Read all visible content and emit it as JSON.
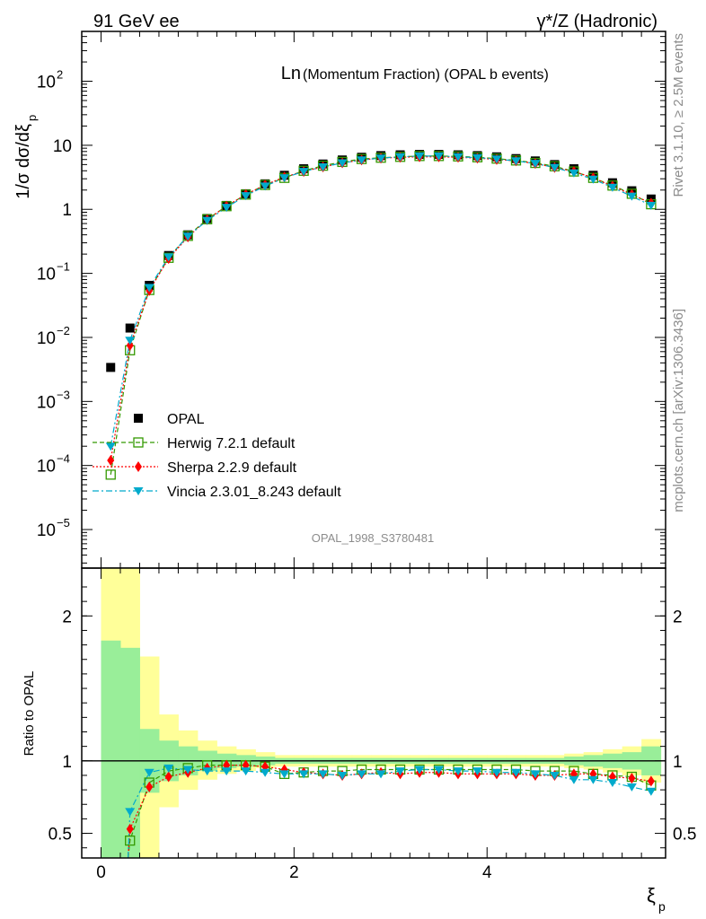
{
  "header": {
    "left": "91 GeV ee",
    "right": "γ*/Z (Hadronic)"
  },
  "side_text": {
    "version": "Rivet 3.1.10, ≥ 2.5M events",
    "url": "mcplots.cern.ch [arXiv:1306.3436]"
  },
  "chart_data": [
    {
      "type": "scatter",
      "title_main": "Ln",
      "title_rest": "(Momentum Fraction) (OPAL b events)",
      "watermark": "OPAL_1998_S3780481",
      "ylabel": "1/σ dσ/dξ",
      "ylabel_sub": "p",
      "yscale": "log",
      "ylim": [
        2.5e-06,
        600
      ],
      "xlim": [
        -0.2,
        5.85
      ],
      "y_ticks": [
        {
          "v": 1e-05,
          "base": "10",
          "exp": "−5"
        },
        {
          "v": 0.0001,
          "base": "10",
          "exp": "−4"
        },
        {
          "v": 0.001,
          "base": "10",
          "exp": "−3"
        },
        {
          "v": 0.01,
          "base": "10",
          "exp": "−2"
        },
        {
          "v": 0.1,
          "base": "10",
          "exp": "−1"
        },
        {
          "v": 1,
          "base": "1",
          "exp": ""
        },
        {
          "v": 10,
          "base": "10",
          "exp": ""
        },
        {
          "v": 100,
          "base": "10",
          "exp": "2"
        }
      ],
      "legend_position": "lower-left",
      "x": [
        0.1,
        0.3,
        0.5,
        0.7,
        0.9,
        1.1,
        1.3,
        1.5,
        1.7,
        1.9,
        2.1,
        2.3,
        2.5,
        2.7,
        2.9,
        3.1,
        3.3,
        3.5,
        3.7,
        3.9,
        4.1,
        4.3,
        4.5,
        4.7,
        4.9,
        5.1,
        5.3,
        5.5,
        5.7
      ],
      "series": [
        {
          "name": "OPAL",
          "color": "#000000",
          "marker": "filled-square",
          "values": [
            0.0034,
            0.014,
            0.065,
            0.19,
            0.4,
            0.72,
            1.15,
            1.75,
            2.5,
            3.4,
            4.3,
            5.1,
            5.9,
            6.5,
            6.9,
            7.1,
            7.2,
            7.2,
            7.1,
            6.9,
            6.6,
            6.2,
            5.7,
            5.0,
            4.3,
            3.4,
            2.6,
            1.95,
            1.45
          ]
        },
        {
          "name": "Herwig 7.2.1 default",
          "color": "#339900",
          "marker": "open-square",
          "line": "dashed",
          "values": [
            7.2e-05,
            0.0063,
            0.055,
            0.175,
            0.385,
            0.7,
            1.12,
            1.7,
            2.4,
            3.1,
            4.0,
            4.8,
            5.5,
            6.1,
            6.4,
            6.6,
            6.8,
            6.8,
            6.7,
            6.5,
            6.2,
            5.8,
            5.3,
            4.7,
            3.9,
            3.1,
            2.35,
            1.75,
            1.2
          ]
        },
        {
          "name": "Sherpa 2.2.9 default",
          "color": "#ff0000",
          "marker": "diamond",
          "line": "dotted",
          "values": [
            0.00012,
            0.0075,
            0.054,
            0.17,
            0.37,
            0.69,
            1.12,
            1.7,
            2.4,
            3.2,
            3.9,
            4.6,
            5.3,
            5.9,
            6.3,
            6.5,
            6.6,
            6.6,
            6.5,
            6.3,
            6.0,
            5.7,
            5.2,
            4.5,
            3.9,
            3.1,
            2.3,
            1.7,
            1.25
          ]
        },
        {
          "name": "Vincia 2.3.01_8.243 default",
          "color": "#00aacc",
          "marker": "down-triangle",
          "line": "dashdot",
          "values": [
            0.0002,
            0.009,
            0.06,
            0.18,
            0.38,
            0.67,
            1.07,
            1.63,
            2.3,
            3.1,
            3.9,
            4.6,
            5.3,
            5.9,
            6.3,
            6.6,
            6.8,
            6.8,
            6.6,
            6.4,
            6.1,
            5.7,
            5.2,
            4.5,
            3.7,
            2.95,
            2.2,
            1.6,
            1.15
          ]
        }
      ]
    },
    {
      "type": "scatter",
      "ylabel": "Ratio to OPAL",
      "xlabel": "ξ",
      "xlabel_sub": "p",
      "xlim": [
        -0.2,
        5.85
      ],
      "ylim": [
        0.33,
        2.33
      ],
      "x_ticks": [
        {
          "v": 0,
          "label": "0"
        },
        {
          "v": 2,
          "label": "2"
        },
        {
          "v": 4,
          "label": "4"
        }
      ],
      "y_ticks": [
        {
          "v": 0.5,
          "label": "0.5"
        },
        {
          "v": 1,
          "label": "1"
        },
        {
          "v": 2,
          "label": "2"
        }
      ],
      "bands": {
        "x_edges": [
          0.0,
          0.2,
          0.4,
          0.6,
          0.8,
          1.0,
          1.2,
          1.4,
          1.6,
          1.8,
          2.0,
          2.2,
          2.4,
          2.6,
          2.8,
          3.0,
          3.2,
          3.4,
          3.6,
          3.8,
          4.0,
          4.2,
          4.4,
          4.6,
          4.8,
          5.0,
          5.2,
          5.4,
          5.6,
          5.8
        ],
        "yellow_color": "#ffff99",
        "green_color": "#99ee99",
        "yellow_lo": [
          0.33,
          0.33,
          0.33,
          0.68,
          0.8,
          0.87,
          0.91,
          0.93,
          0.95,
          0.96,
          0.96,
          0.96,
          0.96,
          0.96,
          0.96,
          0.96,
          0.96,
          0.96,
          0.96,
          0.96,
          0.96,
          0.96,
          0.96,
          0.96,
          0.95,
          0.94,
          0.92,
          0.9,
          0.85
        ],
        "yellow_hi": [
          2.33,
          2.33,
          1.72,
          1.32,
          1.21,
          1.14,
          1.1,
          1.08,
          1.06,
          1.04,
          1.04,
          1.04,
          1.04,
          1.04,
          1.04,
          1.04,
          1.04,
          1.04,
          1.04,
          1.04,
          1.04,
          1.04,
          1.04,
          1.04,
          1.05,
          1.06,
          1.08,
          1.1,
          1.15
        ],
        "green_lo": [
          0.33,
          0.33,
          0.78,
          0.86,
          0.9,
          0.93,
          0.95,
          0.96,
          0.97,
          0.98,
          0.98,
          0.98,
          0.98,
          0.98,
          0.98,
          0.98,
          0.98,
          0.98,
          0.98,
          0.98,
          0.98,
          0.98,
          0.98,
          0.98,
          0.97,
          0.96,
          0.95,
          0.94,
          0.9
        ],
        "green_hi": [
          1.83,
          1.78,
          1.22,
          1.14,
          1.1,
          1.07,
          1.05,
          1.04,
          1.03,
          1.02,
          1.02,
          1.02,
          1.02,
          1.02,
          1.02,
          1.02,
          1.02,
          1.02,
          1.02,
          1.02,
          1.02,
          1.02,
          1.02,
          1.02,
          1.03,
          1.04,
          1.05,
          1.06,
          1.1
        ]
      },
      "x": [
        0.3,
        0.5,
        0.7,
        0.9,
        1.1,
        1.3,
        1.5,
        1.7,
        1.9,
        2.1,
        2.3,
        2.5,
        2.7,
        2.9,
        3.1,
        3.3,
        3.5,
        3.7,
        3.9,
        4.1,
        4.3,
        4.5,
        4.7,
        4.9,
        5.1,
        5.3,
        5.5,
        5.7
      ],
      "series": [
        {
          "name": "Herwig 7.2.1 default",
          "color": "#339900",
          "marker": "open-square",
          "line": "dashed",
          "values": [
            0.45,
            0.85,
            0.93,
            0.95,
            0.97,
            0.97,
            0.97,
            0.96,
            0.91,
            0.92,
            0.93,
            0.93,
            0.94,
            0.94,
            0.94,
            0.94,
            0.94,
            0.94,
            0.94,
            0.94,
            0.94,
            0.93,
            0.93,
            0.93,
            0.91,
            0.9,
            0.89,
            0.83
          ]
        },
        {
          "name": "Sherpa 2.2.9 default",
          "color": "#ff0000",
          "marker": "diamond",
          "line": "dotted",
          "values": [
            0.53,
            0.82,
            0.89,
            0.92,
            0.95,
            0.97,
            0.97,
            0.96,
            0.94,
            0.92,
            0.91,
            0.9,
            0.91,
            0.92,
            0.91,
            0.92,
            0.92,
            0.91,
            0.91,
            0.91,
            0.91,
            0.9,
            0.9,
            0.91,
            0.91,
            0.89,
            0.88,
            0.86
          ]
        },
        {
          "name": "Vincia 2.3.01_8.243 default",
          "color": "#00aacc",
          "marker": "down-triangle",
          "line": "dashdot",
          "values": [
            0.65,
            0.92,
            0.95,
            0.94,
            0.93,
            0.93,
            0.93,
            0.92,
            0.91,
            0.91,
            0.91,
            0.9,
            0.91,
            0.91,
            0.93,
            0.94,
            0.94,
            0.93,
            0.93,
            0.92,
            0.92,
            0.91,
            0.9,
            0.87,
            0.87,
            0.85,
            0.82,
            0.79
          ]
        }
      ]
    }
  ]
}
